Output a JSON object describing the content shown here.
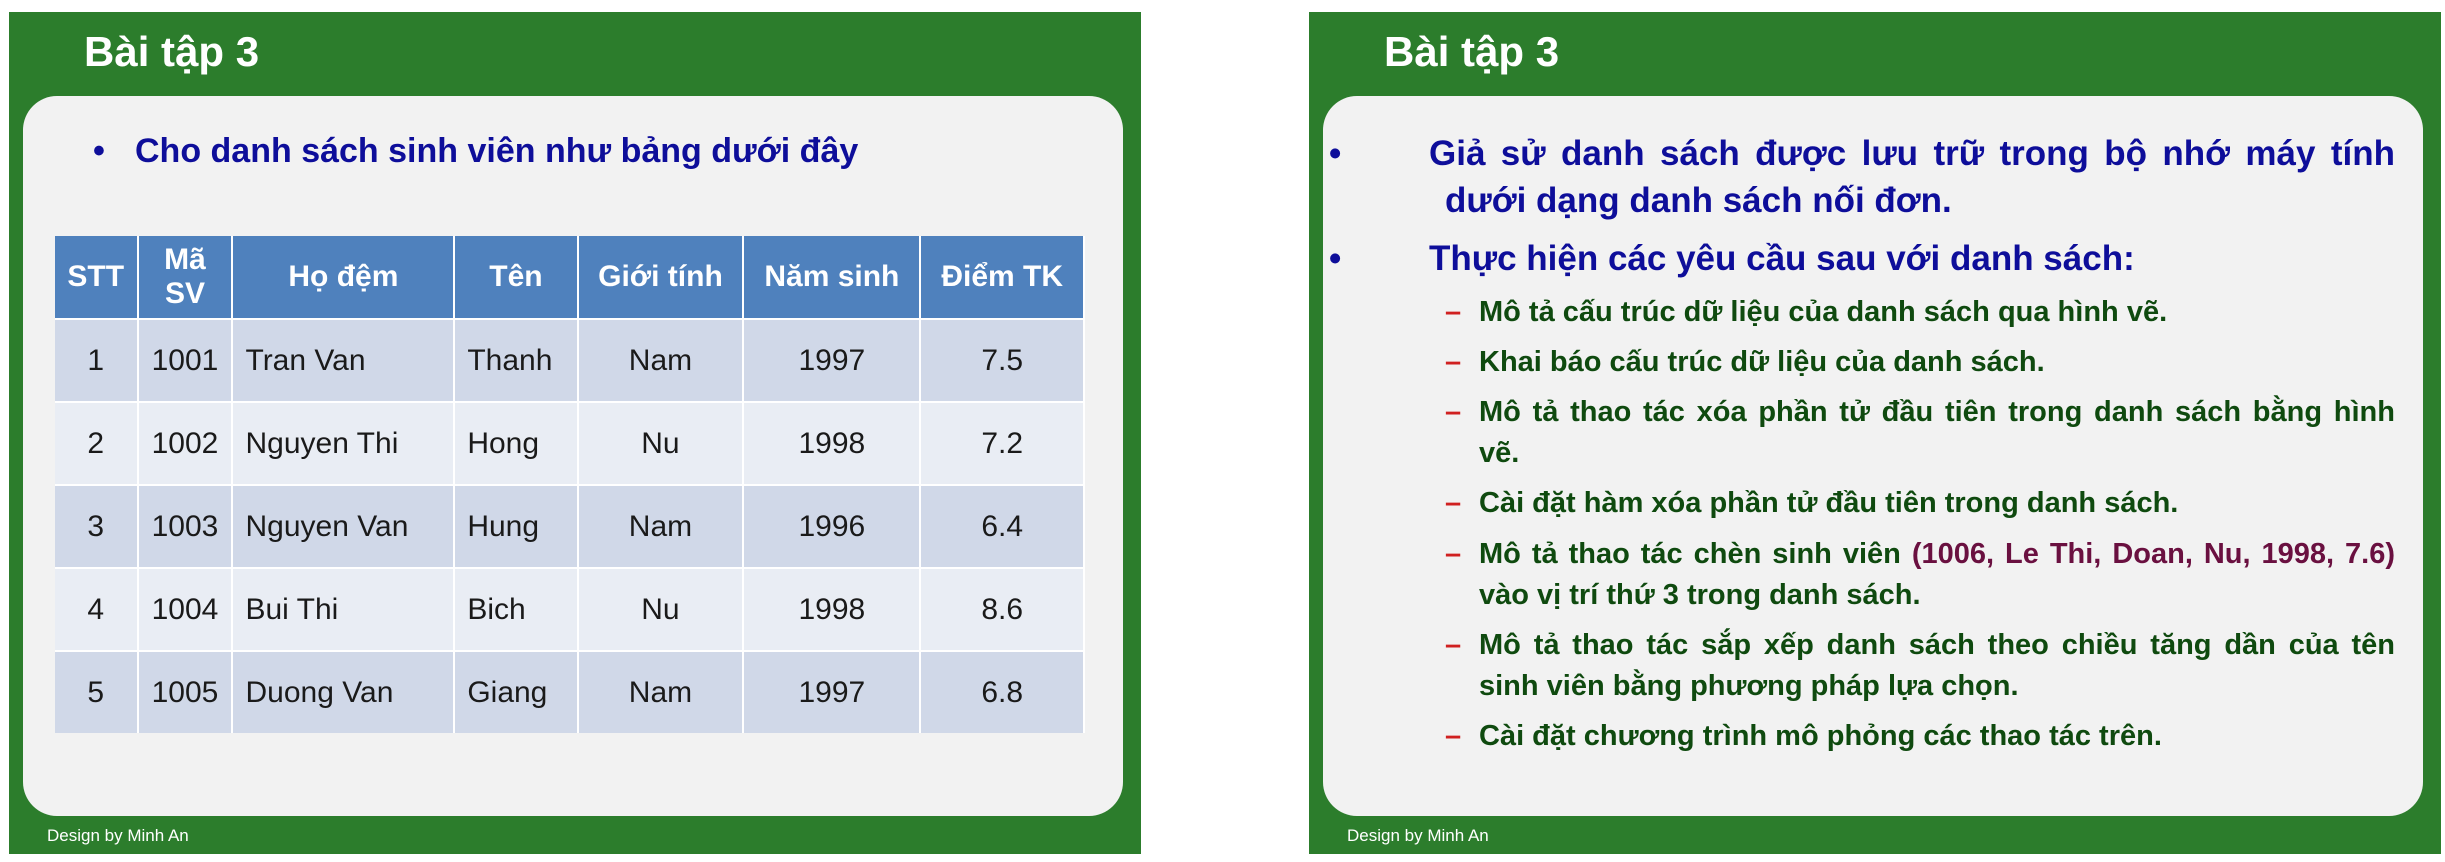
{
  "slides": [
    {
      "title": "Bài tập 3",
      "footer": "Design by Minh An",
      "lead": "Cho danh sách sinh viên như bảng dưới đây",
      "table": {
        "headers": [
          "STT",
          "Mã SV",
          "Họ đệm",
          "Tên",
          "Giới tính",
          "Năm sinh",
          "Điểm TK"
        ],
        "rows": [
          [
            "1",
            "1001",
            "Tran Van",
            "Thanh",
            "Nam",
            "1997",
            "7.5"
          ],
          [
            "2",
            "1002",
            "Nguyen Thi",
            "Hong",
            "Nu",
            "1998",
            "7.2"
          ],
          [
            "3",
            "1003",
            "Nguyen Van",
            "Hung",
            "Nam",
            "1996",
            "6.4"
          ],
          [
            "4",
            "1004",
            "Bui Thi",
            "Bich",
            "Nu",
            "1998",
            "8.6"
          ],
          [
            "5",
            "1005",
            "Duong Van",
            "Giang",
            "Nam",
            "1997",
            "6.8"
          ]
        ]
      }
    },
    {
      "title": "Bài tập 3",
      "footer": "Design by Minh An",
      "bullet_1": "Giả sử danh sách được lưu trữ trong bộ nhớ máy tính dưới dạng danh sách nối đơn.",
      "bullet_2": "Thực hiện các yêu cầu sau với danh sách:",
      "sub": {
        "s1": "Mô tả cấu trúc dữ liệu của danh sách qua hình vẽ.",
        "s2": "Khai báo cấu trúc dữ liệu của danh sách.",
        "s3": "Mô tả thao tác xóa phần tử đầu tiên trong danh sách bằng hình vẽ.",
        "s4": "Cài đặt hàm xóa phần tử đầu tiên trong danh sách.",
        "s5_before": "Mô tả thao tác chèn sinh viên ",
        "s5_highlight": "(1006, Le Thi, Doan, Nu, 1998, 7.6)",
        "s5_after": " vào vị trí thứ 3 trong danh sách.",
        "s6": "Mô tả thao tác sắp xếp danh sách theo chiều tăng dần của tên sinh viên bằng phương pháp lựa chọn.",
        "s7": "Cài đặt chương trình mô phỏng các thao tác trên."
      }
    }
  ],
  "colors": {
    "slide_frame": "#2c7d2c",
    "content_bg": "#f2f2f2",
    "table_header": "#4f81bd",
    "row_odd": "#d0d8e8",
    "row_even": "#e9edf4",
    "bullet_text": "#0e0e9a",
    "sub_text": "#0f4a0f",
    "dash": "#d02020",
    "highlight": "#6a1040"
  }
}
